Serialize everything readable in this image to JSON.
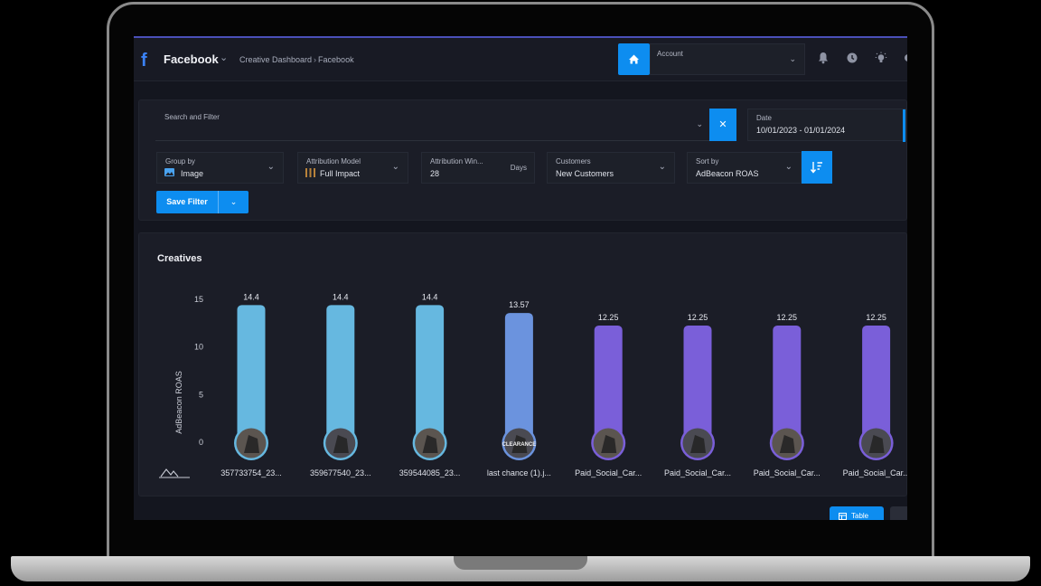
{
  "header": {
    "app_title": "Facebook",
    "breadcrumb": [
      "Creative Dashboard",
      "Facebook"
    ],
    "account_label": "Account"
  },
  "filters": {
    "search_label": "Search and Filter",
    "date_label": "Date",
    "date_value": "10/01/2023 - 01/01/2024",
    "group_by_label": "Group by",
    "group_by_value": "Image",
    "attribution_model_label": "Attribution Model",
    "attribution_model_value": "Full Impact",
    "attribution_window_label": "Attribution Win...",
    "attribution_window_value": "28",
    "attribution_window_unit": "Days",
    "customers_label": "Customers",
    "customers_value": "New Customers",
    "sort_by_label": "Sort by",
    "sort_by_value": "AdBeacon ROAS",
    "save_filter_label": "Save Filter"
  },
  "creatives": {
    "title": "Creatives",
    "table_button": "Table"
  },
  "colors": {
    "accent": "#0d8df0",
    "bar_cyan": "#66b8e0",
    "bar_blue": "#6b93de",
    "bar_purple": "#7a5fd9"
  },
  "chart_data": {
    "type": "bar",
    "ylabel": "AdBeacon ROAS",
    "xlabel": "",
    "ylim": [
      0,
      15
    ],
    "yticks": [
      0,
      5,
      10,
      15
    ],
    "grid": false,
    "categories": [
      "357733754_23...",
      "359677540_23...",
      "359544085_23...",
      "last chance (1).j...",
      "Paid_Social_Car...",
      "Paid_Social_Car...",
      "Paid_Social_Car...",
      "Paid_Social_Car..."
    ],
    "values": [
      14.4,
      14.4,
      14.4,
      13.57,
      12.25,
      12.25,
      12.25,
      12.25
    ],
    "value_labels": [
      "14.4",
      "14.4",
      "14.4",
      "13.57",
      "12.25",
      "12.25",
      "12.25",
      "12.25"
    ],
    "bar_colors": [
      "#66b8e0",
      "#66b8e0",
      "#66b8e0",
      "#6b93de",
      "#7a5fd9",
      "#7a5fd9",
      "#7a5fd9",
      "#7a5fd9"
    ],
    "thumbnail_text": [
      "",
      "",
      "",
      "CLEARANCE",
      "",
      "",
      "",
      ""
    ]
  }
}
